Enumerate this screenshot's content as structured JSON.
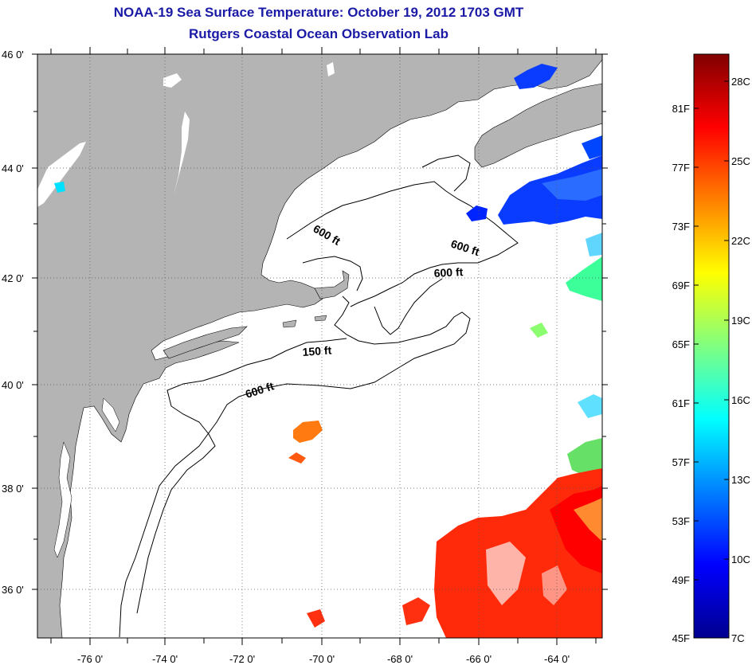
{
  "title": "NOAA-19 Sea Surface Temperature:  October 19, 2012 1703 GMT",
  "subtitle": "Rutgers Coastal Ocean Observation Lab",
  "map": {
    "lon_ticks": [
      "-76 0'",
      "-74 0'",
      "-72 0'",
      "-70 0'",
      "-68 0'",
      "-66 0'",
      "-64 0'"
    ],
    "lat_ticks": [
      "46 0'",
      "44 0'",
      "42 0'",
      "40 0'",
      "38 0'",
      "36 0'"
    ],
    "contours": [
      "600 ft",
      "600 ft",
      "600 ft",
      "150 ft",
      "600 ft"
    ],
    "land_color": "#b4b4b4",
    "ocean_color": "#ffffff"
  },
  "colorbar": {
    "fahrenheit": [
      "81F",
      "77F",
      "73F",
      "69F",
      "65F",
      "61F",
      "57F",
      "53F",
      "49F",
      "45F"
    ],
    "celsius": [
      "28C",
      "25C",
      "22C",
      "19C",
      "16C",
      "13C",
      "10C",
      "7C"
    ],
    "colors": [
      "#00008f",
      "#0000ff",
      "#0080ff",
      "#00ffff",
      "#80ff80",
      "#ffff00",
      "#ff8000",
      "#ff0000",
      "#800000"
    ]
  }
}
